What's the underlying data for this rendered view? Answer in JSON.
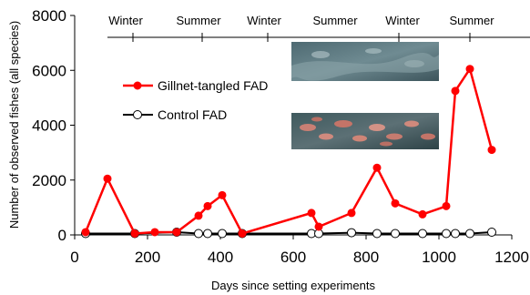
{
  "chart_data": {
    "type": "line",
    "xlabel": "Days since setting experiments",
    "ylabel": "Number of observed fishes (all species)",
    "xlim": [
      0,
      1200
    ],
    "ylim": [
      0,
      8000
    ],
    "xticks": [
      0,
      200,
      400,
      600,
      800,
      1000,
      1200
    ],
    "xtick_labels": [
      "0",
      "200",
      "400",
      "600",
      "800",
      "1000",
      "1200"
    ],
    "yticks": [
      0,
      2000,
      4000,
      6000,
      8000
    ],
    "ytick_labels": [
      "0",
      "2000",
      "4000",
      "6000",
      "8000"
    ],
    "grid": false,
    "legend_position": "upper-left",
    "seasons": [
      {
        "label": "Winter",
        "x": 140
      },
      {
        "label": "Summer",
        "x": 340
      },
      {
        "label": "Winter",
        "x": 520
      },
      {
        "label": "Summer",
        "x": 715
      },
      {
        "label": "Winter",
        "x": 900
      },
      {
        "label": "Summer",
        "x": 1090
      }
    ],
    "season_ticks": [
      160,
      350,
      530,
      890,
      1085
    ],
    "season_range": [
      90,
      1250
    ],
    "series": [
      {
        "name": "Gillnet-tangled FAD",
        "color": "#ff0000",
        "marker": "filled-circle",
        "x": [
          30,
          90,
          165,
          220,
          280,
          340,
          365,
          405,
          460,
          650,
          670,
          760,
          830,
          880,
          955,
          1020,
          1045,
          1085,
          1145
        ],
        "y": [
          100,
          2050,
          50,
          100,
          100,
          700,
          1050,
          1450,
          50,
          800,
          300,
          800,
          2450,
          1150,
          750,
          1050,
          5250,
          6050,
          3100
        ]
      },
      {
        "name": "Control FAD",
        "color": "#000000",
        "marker": "open-circle",
        "x": [
          30,
          165,
          280,
          340,
          365,
          405,
          460,
          650,
          670,
          760,
          830,
          880,
          955,
          1020,
          1045,
          1085,
          1145
        ],
        "y": [
          50,
          50,
          100,
          50,
          50,
          50,
          50,
          50,
          50,
          80,
          50,
          50,
          50,
          50,
          50,
          50,
          100
        ]
      }
    ]
  }
}
